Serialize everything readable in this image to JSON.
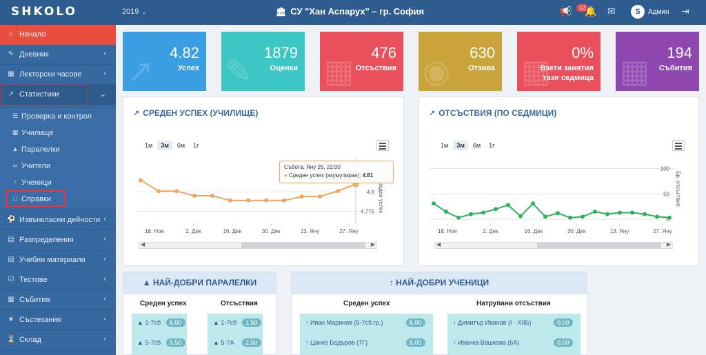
{
  "header": {
    "logo": "SHKOLO",
    "year": "2019",
    "school": "СУ \"Хан Аспарух\" – гр. София",
    "notification_count": "12",
    "avatar_letter": "S",
    "user": "Админ"
  },
  "sidebar": {
    "items": [
      {
        "label": "Начало",
        "icon": "home-icon"
      },
      {
        "label": "Дневник",
        "icon": "edit-icon"
      },
      {
        "label": "Лекторски часове",
        "icon": "calendar-icon"
      },
      {
        "label": "Статистики",
        "icon": "chart-icon"
      },
      {
        "label": "Извънкласни дейности",
        "icon": "ball-icon"
      },
      {
        "label": "Разпределения",
        "icon": "list-icon"
      },
      {
        "label": "Учебни материали",
        "icon": "book-icon"
      },
      {
        "label": "Тестове",
        "icon": "check-icon"
      },
      {
        "label": "Събития",
        "icon": "calendar-icon"
      },
      {
        "label": "Състезания",
        "icon": "trophy-icon"
      },
      {
        "label": "Склад",
        "icon": "cart-icon"
      }
    ],
    "sub_items": [
      {
        "label": "Проверка и контрол"
      },
      {
        "label": "Училище"
      },
      {
        "label": "Паралелки"
      },
      {
        "label": "Учители"
      },
      {
        "label": "Ученици"
      },
      {
        "label": "Справки"
      }
    ]
  },
  "tiles": [
    {
      "value": "4.82",
      "caption": "Успех",
      "color": "#3a9ee3"
    },
    {
      "value": "1879",
      "caption": "Оценки",
      "color": "#3dc7c4"
    },
    {
      "value": "476",
      "caption": "Отсъствия",
      "color": "#e9505b"
    },
    {
      "value": "630",
      "caption": "Отзива",
      "color": "#c9a43a"
    },
    {
      "value": "0%",
      "caption": "Взети занятия тази седмица",
      "color": "#e9505b"
    },
    {
      "value": "194",
      "caption": "Събития",
      "color": "#8f47b0"
    }
  ],
  "zoom_buttons": [
    "1м",
    "3м",
    "6м",
    "1г"
  ],
  "chart_data": [
    {
      "type": "line",
      "title": "Среден успех (училище)",
      "ylabel": "Среден успех",
      "x_ticks": [
        "18. Ное",
        "2. Дек",
        "16. Дек",
        "30. Дек",
        "13. Яну",
        "27. Яну"
      ],
      "y_ticks": [
        "4.8",
        "4.775"
      ],
      "series": [
        {
          "name": "Среден успех (акумулиран)",
          "values": [
            4.815,
            4.801,
            4.801,
            4.795,
            4.795,
            4.789,
            4.789,
            4.789,
            4.789,
            4.794,
            4.794,
            4.801,
            4.81
          ]
        }
      ],
      "ylim": [
        4.765,
        4.825
      ],
      "color": "#f0a55a",
      "tooltip": {
        "title": "Събота, Яну 25, 22:00",
        "label": "Среден успех (акумулиран):",
        "value": "4.81"
      }
    },
    {
      "type": "line",
      "title": "Отсъствия (по седмици)",
      "ylabel": "Бр. отсъствия",
      "x_ticks": [
        "18. Ное",
        "2. Дек",
        "16. Дек",
        "30. Дек",
        "13. Яну",
        "27. Яну"
      ],
      "y_ticks": [
        "100",
        "50",
        "0"
      ],
      "series": [
        {
          "name": "Отсъствия",
          "values": [
            31,
            15,
            3,
            10,
            13,
            20,
            28,
            6,
            31,
            5,
            12,
            3,
            5,
            15,
            10,
            13,
            13,
            10,
            5,
            3
          ]
        }
      ],
      "ylim": [
        0,
        120
      ],
      "color": "#2cb35a"
    }
  ],
  "best_classes": {
    "title": "Най-добри паралелки",
    "col_success": "Среден успех",
    "col_absences": "Отсъствия",
    "success_rows": [
      {
        "name": "1-7сб",
        "value": "6.00"
      },
      {
        "name": "5-7сб",
        "value": "5.50"
      }
    ],
    "absence_rows": [
      {
        "name": "1-7сб",
        "value": "1.50"
      },
      {
        "name": "5-7А",
        "value": "2.50"
      }
    ]
  },
  "best_students": {
    "title": "Най-добри ученици",
    "col_success": "Среден успех",
    "col_absences": "Натрупани отсъствия",
    "success_rows": [
      {
        "name": "Иван Маринов (5-7сб.гр.)",
        "value": "6.00"
      },
      {
        "name": "Цанко Бодъров (7Г)",
        "value": "6.00"
      }
    ],
    "absence_rows": [
      {
        "name": "Димитър Иванов (I - XIIБ)",
        "value": "0.00"
      },
      {
        "name": "Иванка Вашкова (6А)",
        "value": "0.00"
      }
    ]
  }
}
